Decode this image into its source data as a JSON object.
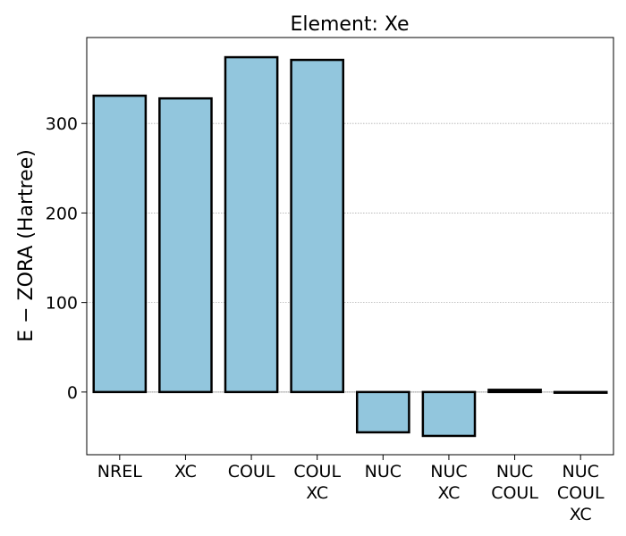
{
  "chart_data": {
    "type": "bar",
    "title": "Element: Xe",
    "xlabel": "",
    "ylabel": "E − ZORA (Hartree)",
    "categories": [
      [
        "NREL"
      ],
      [
        "XC"
      ],
      [
        "COUL"
      ],
      [
        "COUL",
        "XC"
      ],
      [
        "NUC"
      ],
      [
        "NUC",
        "XC"
      ],
      [
        "NUC",
        "COUL"
      ],
      [
        "NUC",
        "COUL",
        "XC"
      ]
    ],
    "values": [
      331,
      328,
      374,
      371,
      -45,
      -49,
      2.5,
      0
    ],
    "ylim": [
      -70,
      396
    ],
    "yticks": [
      0,
      100,
      200,
      300
    ],
    "grid": {
      "y": true,
      "x": false,
      "style": "dotted"
    },
    "colors": {
      "bar_fill": "#92c6dd",
      "bar_edge": "#000000",
      "grid": "#b0b0b0",
      "zero_line": "#555555"
    }
  }
}
